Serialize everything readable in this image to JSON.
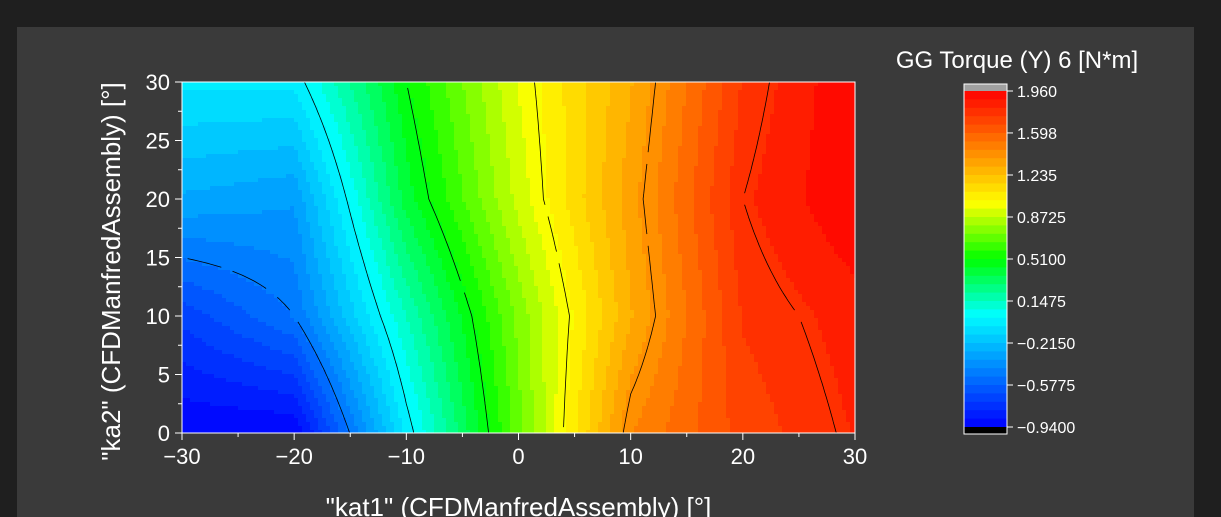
{
  "chart_data": {
    "type": "heatmap",
    "subtype": "filled-contour",
    "title": "",
    "xlabel": "\"kat1\" (CFDManfredAssembly) [°]",
    "ylabel": "\"ka2\" (CFDManfredAssembly) [°]",
    "xlim": [
      -30,
      30
    ],
    "ylim": [
      0,
      30
    ],
    "x_ticks": [
      "−30",
      "−20",
      "−10",
      "0",
      "10",
      "20",
      "30"
    ],
    "y_ticks": [
      "0",
      "5",
      "10",
      "15",
      "20",
      "25",
      "30"
    ],
    "x_tick_values": [
      -30,
      -20,
      -10,
      0,
      10,
      20,
      30
    ],
    "y_tick_values": [
      0,
      5,
      10,
      15,
      20,
      25,
      30
    ],
    "x": [
      -30,
      -20,
      -10,
      0,
      10,
      20,
      30
    ],
    "y": [
      0,
      10,
      20,
      30
    ],
    "z": [
      [
        -0.94,
        -0.94,
        -0.05,
        0.7,
        1.45,
        1.7,
        1.82
      ],
      [
        -0.7,
        -0.5,
        0.15,
        0.75,
        1.3,
        1.75,
        1.85
      ],
      [
        -0.3,
        -0.35,
        0.4,
        0.9,
        1.35,
        1.8,
        1.96
      ],
      [
        -0.05,
        -0.05,
        0.5,
        0.95,
        1.3,
        1.75,
        1.96
      ]
    ],
    "contour_levels": [
      -0.5,
      0.0,
      0.5,
      1.0,
      1.4,
      1.8
    ],
    "colorbar": {
      "title": "GG Torque (Y) 6 [N*m]",
      "min": -0.94,
      "max": 1.96,
      "tick_values": [
        1.96,
        1.598,
        1.235,
        0.8725,
        0.51,
        0.1475,
        -0.215,
        -0.5775,
        -0.94
      ],
      "tick_labels": [
        "1.960",
        "1.598",
        "1.235",
        "0.8725",
        "0.5100",
        "0.1475",
        "−0.2150",
        "−0.5775",
        "−0.9400"
      ],
      "over_color": "#a0a0a0",
      "under_color": "#000000"
    },
    "colormap": [
      "#0000ff",
      "#0080ff",
      "#00ffff",
      "#00ff00",
      "#ffff00",
      "#ff8000",
      "#ff0000"
    ],
    "grid": false,
    "legend": "right"
  }
}
